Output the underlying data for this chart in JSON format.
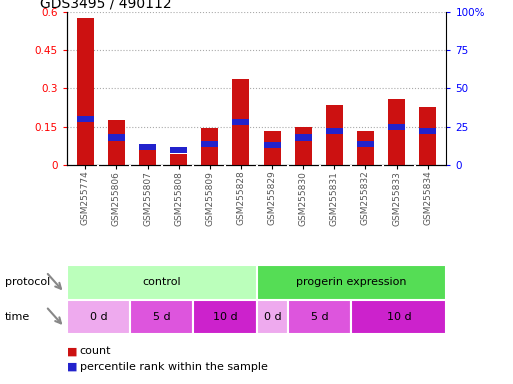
{
  "title": "GDS3495 / 490112",
  "samples": [
    "GSM255774",
    "GSM255806",
    "GSM255807",
    "GSM255808",
    "GSM255809",
    "GSM255828",
    "GSM255829",
    "GSM255830",
    "GSM255831",
    "GSM255832",
    "GSM255833",
    "GSM255834"
  ],
  "count_values": [
    0.575,
    0.175,
    0.065,
    0.045,
    0.145,
    0.335,
    0.135,
    0.148,
    0.235,
    0.133,
    0.258,
    0.228
  ],
  "percentile_values": [
    30,
    18,
    12,
    10,
    14,
    28,
    13,
    18,
    22,
    14,
    25,
    22
  ],
  "ylim_left": [
    0,
    0.6
  ],
  "ylim_right": [
    0,
    100
  ],
  "yticks_left": [
    0,
    0.15,
    0.3,
    0.45,
    0.6
  ],
  "yticks_right": [
    0,
    25,
    50,
    75,
    100
  ],
  "ytick_labels_right": [
    "0",
    "25",
    "50",
    "75",
    "100%"
  ],
  "color_count": "#cc1111",
  "color_percentile": "#2222cc",
  "protocol_control_label": "control",
  "protocol_progerin_label": "progerin expression",
  "protocol_control_color": "#bbffbb",
  "protocol_progerin_color": "#55dd55",
  "time_config": [
    [
      0,
      2,
      "0 d",
      "#eeaaee"
    ],
    [
      2,
      5,
      "5 d",
      "#dd55dd"
    ],
    [
      5,
      6,
      "10 d",
      "#cc00cc"
    ],
    [
      6,
      7,
      "0 d",
      "#eeaaee"
    ],
    [
      7,
      10,
      "5 d",
      "#dd55dd"
    ],
    [
      10,
      12,
      "10 d",
      "#cc00cc"
    ]
  ],
  "legend_count_label": "count",
  "legend_percentile_label": "percentile rank within the sample",
  "bg_color": "#ffffff",
  "grid_color": "#aaaaaa",
  "xlabel_color": "#555555",
  "title_fontsize": 10,
  "tick_fontsize": 7.5,
  "label_fontsize": 8,
  "bar_width": 0.55
}
